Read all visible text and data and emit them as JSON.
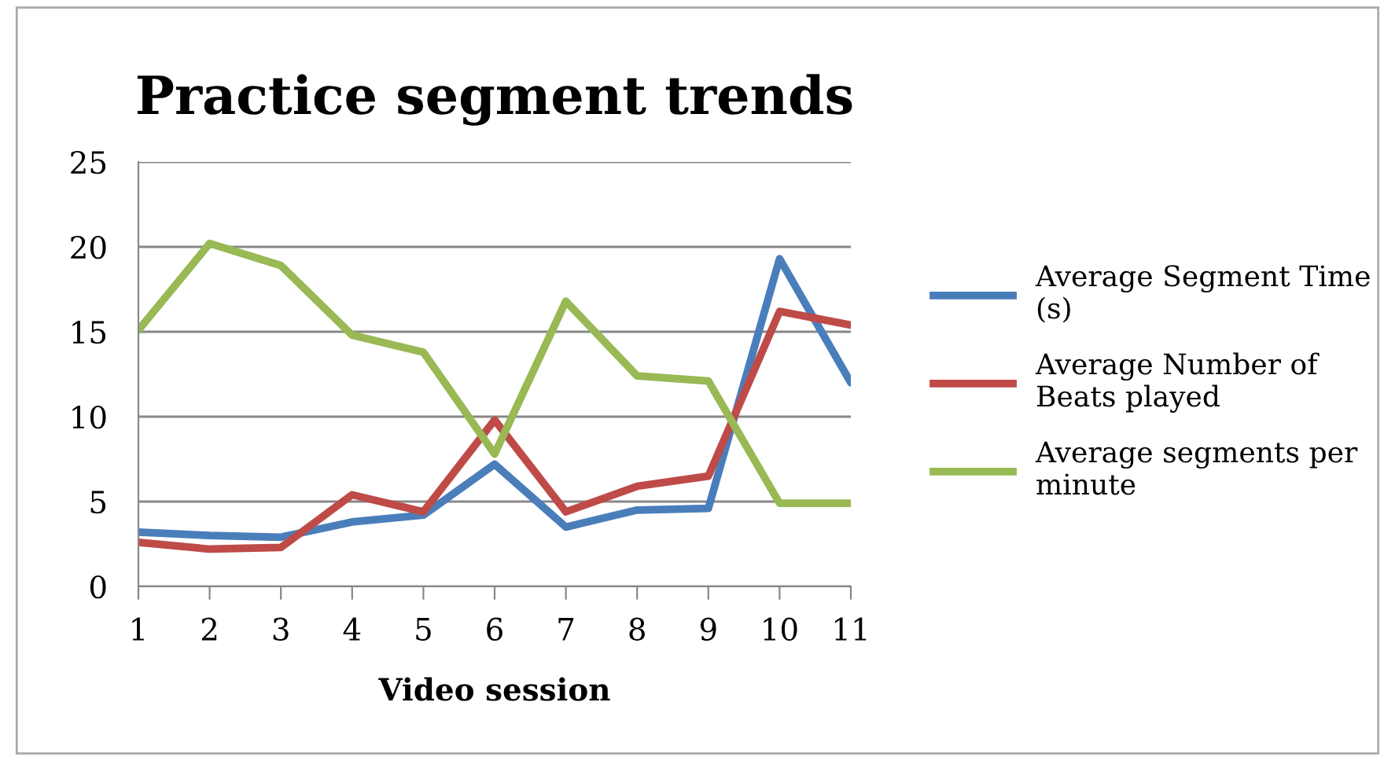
{
  "chart_data": {
    "type": "line",
    "title": "Practice segment trends",
    "xlabel": "Video session",
    "categories": [
      "1",
      "2",
      "3",
      "4",
      "5",
      "6",
      "7",
      "8",
      "9",
      "10",
      "11"
    ],
    "series": [
      {
        "name": "Average Segment Time (s)",
        "color": "#4a7ebb",
        "values": [
          3.2,
          3.0,
          2.9,
          3.8,
          4.2,
          7.2,
          3.5,
          4.5,
          4.6,
          19.3,
          12.0
        ]
      },
      {
        "name": "Average Number of Beats played",
        "color": "#be4b48",
        "values": [
          2.6,
          2.2,
          2.3,
          5.4,
          4.4,
          9.8,
          4.4,
          5.9,
          6.5,
          16.2,
          15.4
        ]
      },
      {
        "name": "Average segments per minute",
        "color": "#98b954",
        "values": [
          15.1,
          20.2,
          18.9,
          14.8,
          13.8,
          7.8,
          16.8,
          12.4,
          12.1,
          4.9,
          4.9
        ]
      }
    ],
    "ylim": [
      0,
      25
    ],
    "yticks": [
      0,
      5,
      10,
      15,
      20,
      25
    ],
    "grid": "y",
    "legend": "right",
    "marker": "none",
    "line_style": "solid"
  }
}
